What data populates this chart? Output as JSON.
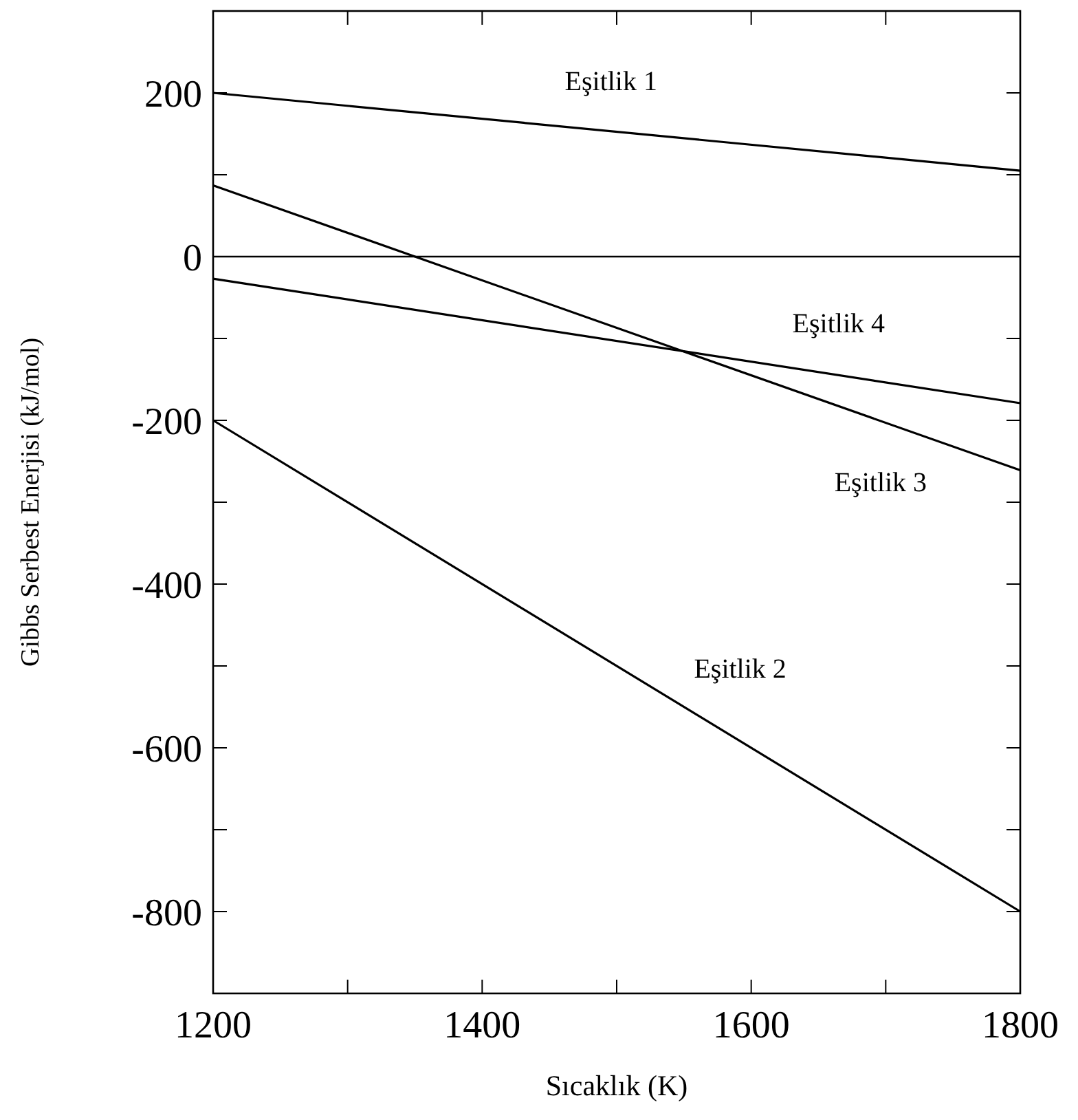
{
  "chart_data": {
    "type": "line",
    "xlabel": "Sıcaklık (K)",
    "ylabel": "Gibbs Serbest Enerjisi (kJ/mol)",
    "x": [
      1200,
      1800
    ],
    "series": [
      {
        "name": "Eşitlik 1",
        "color": "#000000",
        "values": [
          200,
          105
        ]
      },
      {
        "name": "Eşitlik 2",
        "color": "#000000",
        "values": [
          -200,
          -800
        ]
      },
      {
        "name": "Eşitlik 3",
        "color": "#000000",
        "values": [
          87,
          -261
        ]
      },
      {
        "name": "Eşitlik 4",
        "color": "#000000",
        "values": [
          -27,
          -179
        ]
      }
    ],
    "xlim": [
      1200,
      1800
    ],
    "ylim": [
      -900,
      300
    ],
    "xticks": [
      1200,
      {
        "value": 1300,
        "label": null
      },
      1400,
      {
        "value": 1500,
        "label": null
      },
      1600,
      {
        "value": 1700,
        "label": null
      },
      1800
    ],
    "yticks": [
      -800,
      {
        "value": -700,
        "label": null
      },
      -600,
      {
        "value": -500,
        "label": null
      },
      -400,
      {
        "value": -300,
        "label": null
      },
      -200,
      {
        "value": -100,
        "label": null
      },
      0,
      {
        "value": 100,
        "label": null
      },
      200
    ],
    "ref_lines": [
      {
        "axis": "y",
        "value": 0,
        "color": "#000000"
      }
    ],
    "grid": false,
    "line_style": "solid"
  }
}
